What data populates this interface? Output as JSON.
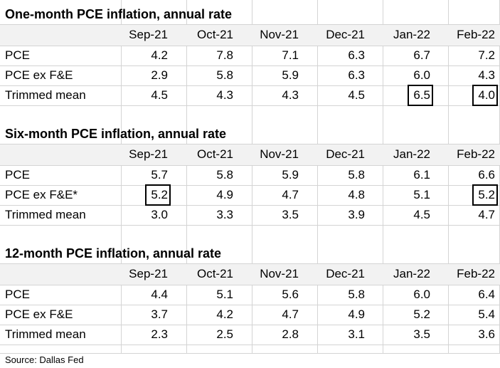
{
  "chart_data": [
    {
      "type": "table",
      "title": "One-month PCE inflation, annual rate",
      "columns": [
        "Sep-21",
        "Oct-21",
        "Nov-21",
        "Dec-21",
        "Jan-22",
        "Feb-22"
      ],
      "rows": [
        {
          "label": "PCE",
          "values": [
            "4.2",
            "7.8",
            "7.1",
            "6.3",
            "6.7",
            "7.2"
          ]
        },
        {
          "label": "PCE ex F&E",
          "values": [
            "2.9",
            "5.8",
            "5.9",
            "6.3",
            "6.0",
            "4.3"
          ]
        },
        {
          "label": "Trimmed mean",
          "values": [
            "4.5",
            "4.3",
            "4.3",
            "4.5",
            "6.5",
            "4.0"
          ]
        }
      ],
      "highlighted_cells": [
        [
          2,
          4
        ],
        [
          2,
          5
        ]
      ]
    },
    {
      "type": "table",
      "title": "Six-month PCE inflation, annual rate",
      "columns": [
        "Sep-21",
        "Oct-21",
        "Nov-21",
        "Dec-21",
        "Jan-22",
        "Feb-22"
      ],
      "rows": [
        {
          "label": "PCE",
          "values": [
            "5.7",
            "5.8",
            "5.9",
            "5.8",
            "6.1",
            "6.6"
          ]
        },
        {
          "label": "PCE ex F&E*",
          "values": [
            "5.2",
            "4.9",
            "4.7",
            "4.8",
            "5.1",
            "5.2"
          ]
        },
        {
          "label": "Trimmed mean",
          "values": [
            "3.0",
            "3.3",
            "3.5",
            "3.9",
            "4.5",
            "4.7"
          ]
        }
      ],
      "highlighted_cells": [
        [
          1,
          0
        ],
        [
          1,
          5
        ]
      ]
    },
    {
      "type": "table",
      "title": "12-month PCE inflation, annual rate",
      "columns": [
        "Sep-21",
        "Oct-21",
        "Nov-21",
        "Dec-21",
        "Jan-22",
        "Feb-22"
      ],
      "rows": [
        {
          "label": "PCE",
          "values": [
            "4.4",
            "5.1",
            "5.6",
            "5.8",
            "6.0",
            "6.4"
          ]
        },
        {
          "label": "PCE ex F&E",
          "values": [
            "3.7",
            "4.2",
            "4.7",
            "4.9",
            "5.2",
            "5.4"
          ]
        },
        {
          "label": "Trimmed mean",
          "values": [
            "2.3",
            "2.5",
            "2.8",
            "3.1",
            "3.5",
            "3.6"
          ]
        }
      ],
      "highlighted_cells": []
    }
  ],
  "source": "Source: Dallas Fed",
  "colors": {
    "grid": "#d4d4d4",
    "header_bg": "#f2f2f2",
    "highlight_border": "#000000"
  }
}
